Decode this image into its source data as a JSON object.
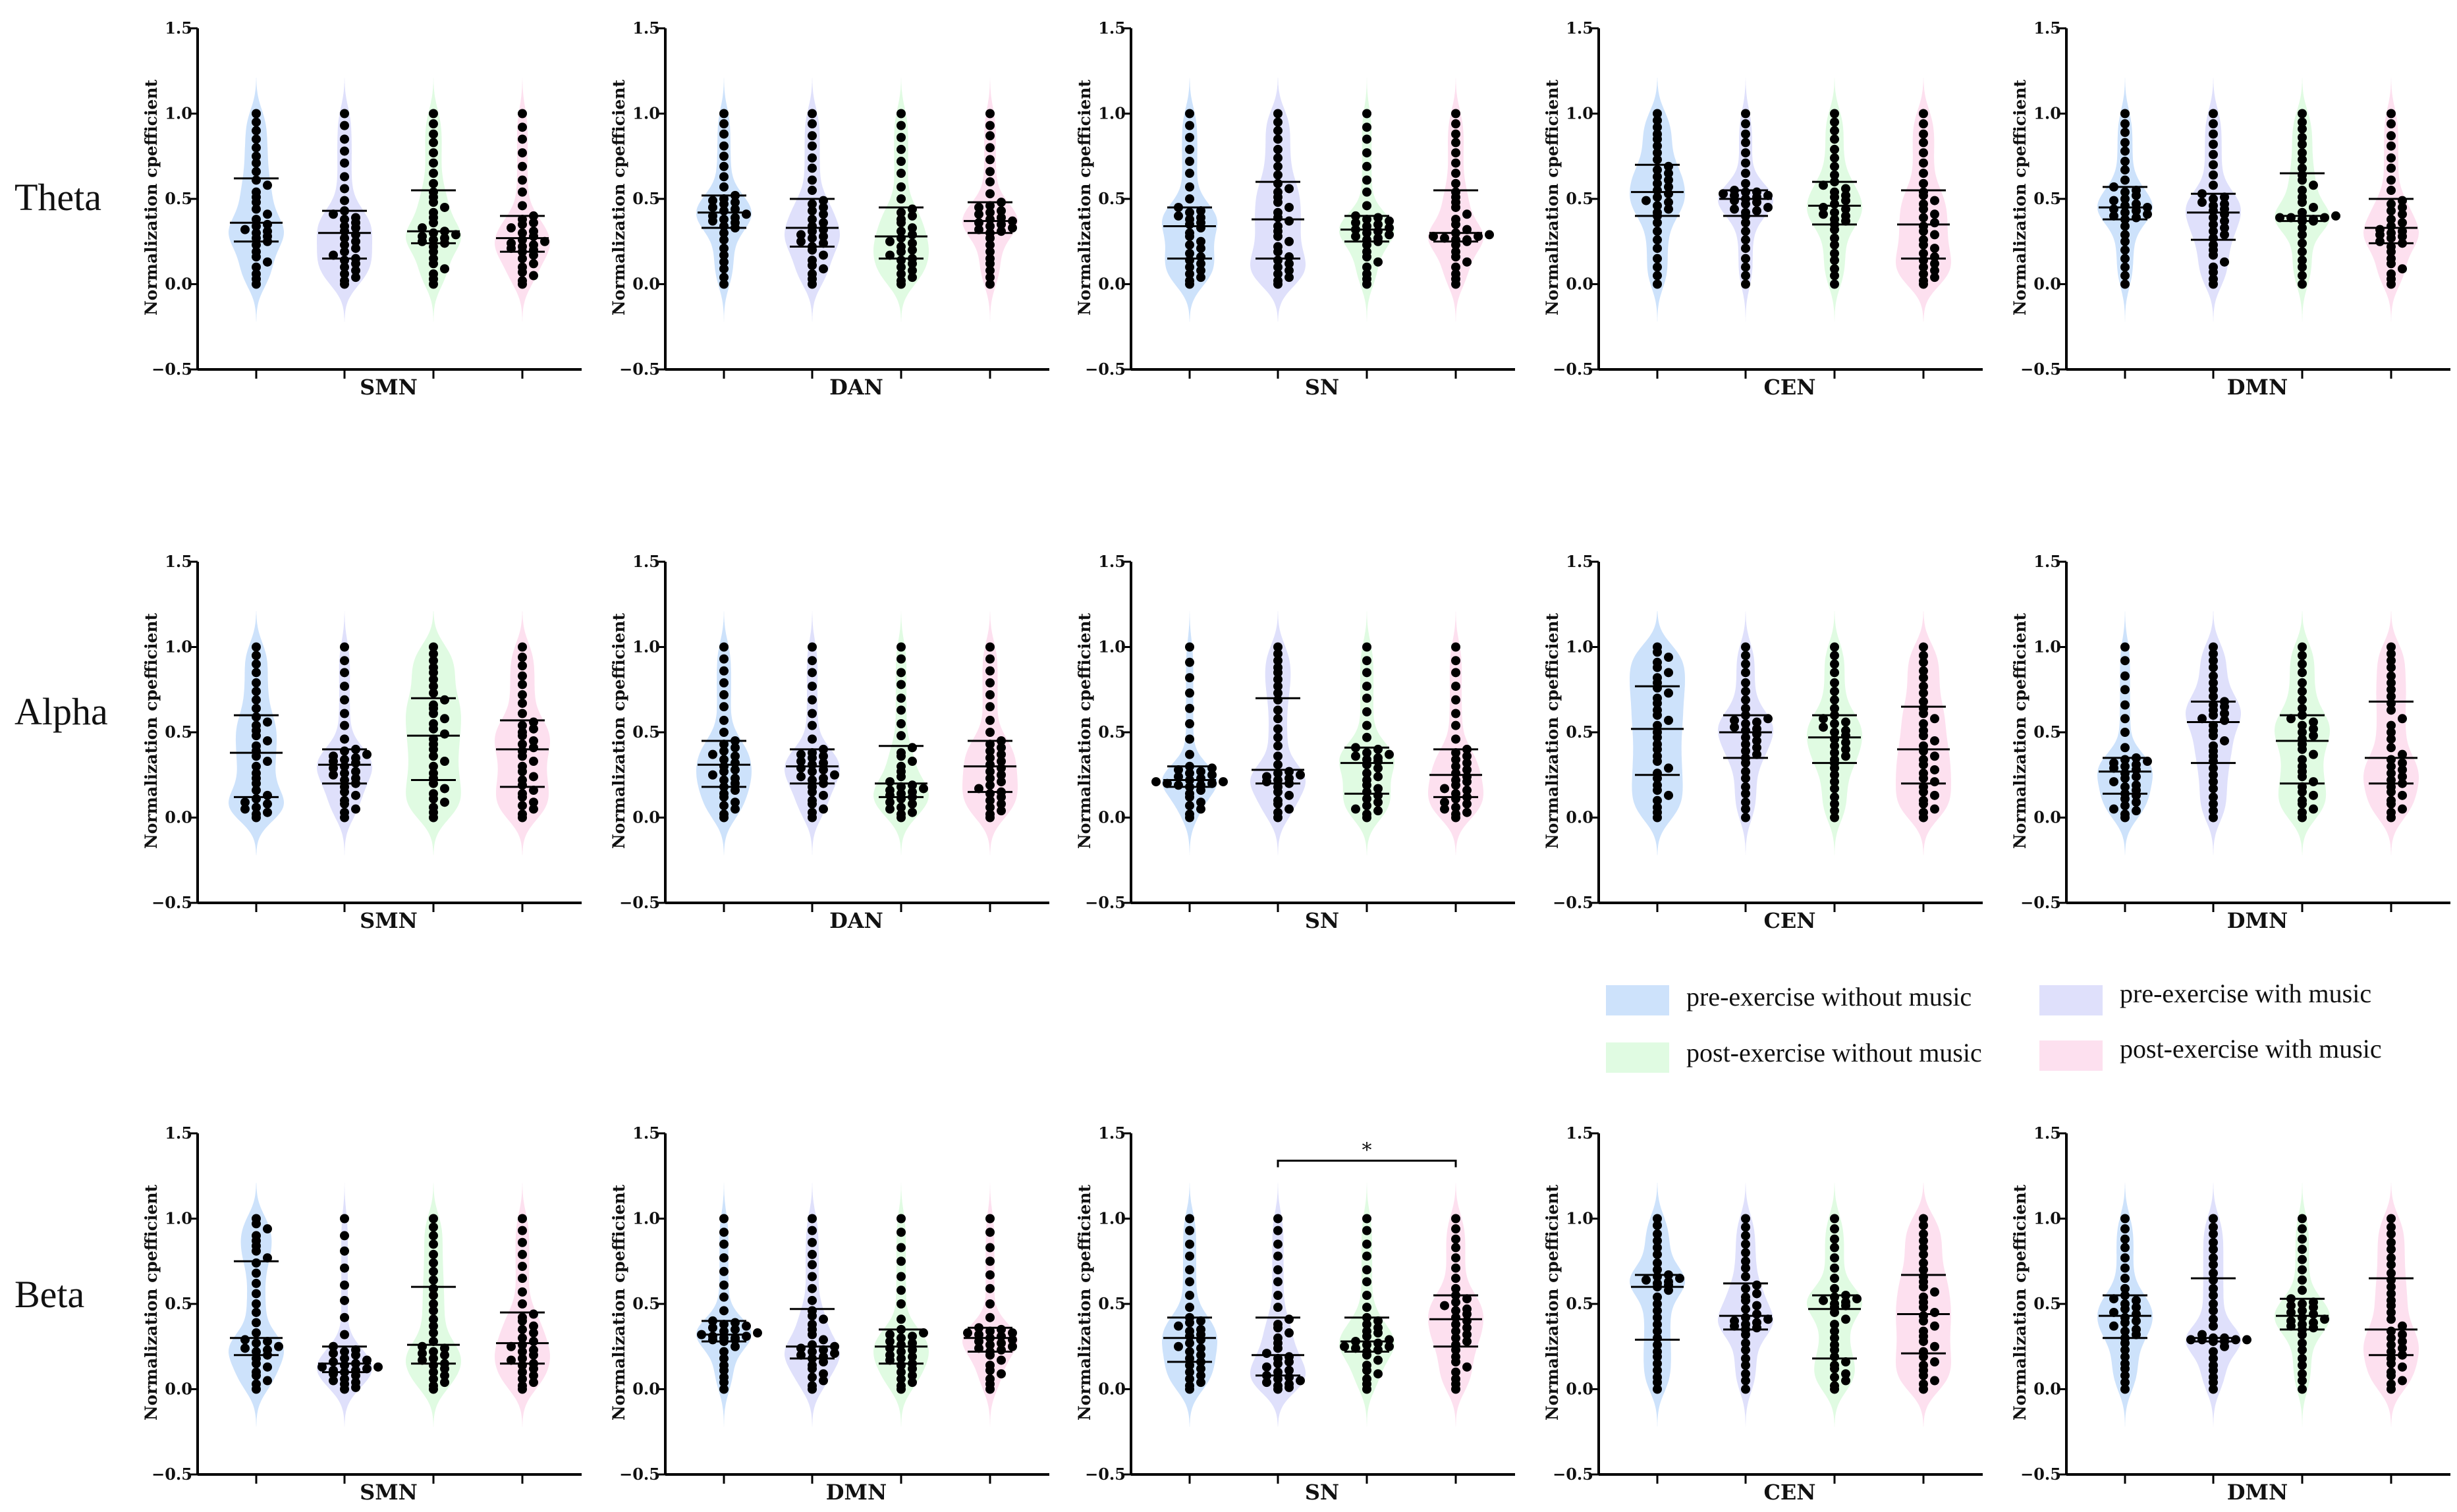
{
  "chart_data": {
    "type": "violin",
    "ylabel": "Normalization cpefficient",
    "ylim": [
      -0.5,
      1.5
    ],
    "yticks": [
      "1.5",
      "1.0",
      "0.5",
      "0.0",
      "−0.5"
    ],
    "ytick_values": [
      1.5,
      1.0,
      0.5,
      0.0,
      -0.5
    ],
    "grid": false,
    "n_per_group": 32,
    "legend": {
      "placement": "right, between Alpha and Beta rows",
      "entries": [
        {
          "label": "pre-exercise without music",
          "color": "#cde2fb"
        },
        {
          "label": "pre-exercise with music",
          "color": "#dfe0fb"
        },
        {
          "label": "post-exercise without music",
          "color": "#e0fbe2"
        },
        {
          "label": "post-exercise with music",
          "color": "#fde0ef"
        }
      ]
    },
    "rows": [
      {
        "band": "Theta",
        "panels": [
          {
            "network": "SMN",
            "groups": [
              {
                "median": 0.36,
                "q1": 0.25,
                "q3": 0.62,
                "min": 0,
                "max": 1
              },
              {
                "median": 0.3,
                "q1": 0.15,
                "q3": 0.43,
                "min": 0,
                "max": 1
              },
              {
                "median": 0.31,
                "q1": 0.24,
                "q3": 0.55,
                "min": 0,
                "max": 1
              },
              {
                "median": 0.27,
                "q1": 0.19,
                "q3": 0.4,
                "min": 0,
                "max": 1
              }
            ]
          },
          {
            "network": "DAN",
            "groups": [
              {
                "median": 0.42,
                "q1": 0.33,
                "q3": 0.52,
                "min": 0,
                "max": 1
              },
              {
                "median": 0.33,
                "q1": 0.22,
                "q3": 0.5,
                "min": 0,
                "max": 1
              },
              {
                "median": 0.28,
                "q1": 0.15,
                "q3": 0.45,
                "min": 0,
                "max": 1
              },
              {
                "median": 0.37,
                "q1": 0.3,
                "q3": 0.48,
                "min": 0,
                "max": 1
              }
            ]
          },
          {
            "network": "SN",
            "groups": [
              {
                "median": 0.34,
                "q1": 0.15,
                "q3": 0.45,
                "min": 0,
                "max": 1
              },
              {
                "median": 0.38,
                "q1": 0.15,
                "q3": 0.6,
                "min": 0,
                "max": 1
              },
              {
                "median": 0.32,
                "q1": 0.25,
                "q3": 0.4,
                "min": 0,
                "max": 1
              },
              {
                "median": 0.3,
                "q1": 0.25,
                "q3": 0.55,
                "min": 0,
                "max": 1
              }
            ]
          },
          {
            "network": "CEN",
            "groups": [
              {
                "median": 0.54,
                "q1": 0.4,
                "q3": 0.7,
                "min": 0,
                "max": 1
              },
              {
                "median": 0.5,
                "q1": 0.4,
                "q3": 0.55,
                "min": 0,
                "max": 1
              },
              {
                "median": 0.46,
                "q1": 0.35,
                "q3": 0.6,
                "min": 0,
                "max": 1
              },
              {
                "median": 0.35,
                "q1": 0.15,
                "q3": 0.55,
                "min": 0,
                "max": 1
              }
            ]
          },
          {
            "network": "DMN",
            "groups": [
              {
                "median": 0.45,
                "q1": 0.38,
                "q3": 0.57,
                "min": 0,
                "max": 1
              },
              {
                "median": 0.42,
                "q1": 0.26,
                "q3": 0.53,
                "min": 0,
                "max": 1
              },
              {
                "median": 0.4,
                "q1": 0.37,
                "q3": 0.65,
                "min": 0,
                "max": 1
              },
              {
                "median": 0.33,
                "q1": 0.24,
                "q3": 0.5,
                "min": 0,
                "max": 1
              }
            ]
          }
        ]
      },
      {
        "band": "Alpha",
        "panels": [
          {
            "network": "SMN",
            "groups": [
              {
                "median": 0.38,
                "q1": 0.12,
                "q3": 0.6,
                "min": 0,
                "max": 1
              },
              {
                "median": 0.31,
                "q1": 0.2,
                "q3": 0.4,
                "min": 0,
                "max": 1
              },
              {
                "median": 0.48,
                "q1": 0.22,
                "q3": 0.7,
                "min": 0,
                "max": 1
              },
              {
                "median": 0.4,
                "q1": 0.18,
                "q3": 0.57,
                "min": 0,
                "max": 1
              }
            ]
          },
          {
            "network": "DAN",
            "groups": [
              {
                "median": 0.31,
                "q1": 0.18,
                "q3": 0.45,
                "min": 0,
                "max": 1
              },
              {
                "median": 0.3,
                "q1": 0.2,
                "q3": 0.4,
                "min": 0,
                "max": 1
              },
              {
                "median": 0.2,
                "q1": 0.12,
                "q3": 0.42,
                "min": 0,
                "max": 1
              },
              {
                "median": 0.3,
                "q1": 0.15,
                "q3": 0.45,
                "min": 0,
                "max": 1
              }
            ]
          },
          {
            "network": "SN",
            "groups": [
              {
                "median": 0.22,
                "q1": 0.18,
                "q3": 0.3,
                "min": 0,
                "max": 1
              },
              {
                "median": 0.28,
                "q1": 0.2,
                "q3": 0.7,
                "min": 0,
                "max": 1
              },
              {
                "median": 0.32,
                "q1": 0.14,
                "q3": 0.41,
                "min": 0,
                "max": 1
              },
              {
                "median": 0.25,
                "q1": 0.12,
                "q3": 0.4,
                "min": 0,
                "max": 1
              }
            ]
          },
          {
            "network": "CEN",
            "groups": [
              {
                "median": 0.52,
                "q1": 0.25,
                "q3": 0.77,
                "min": 0,
                "max": 1
              },
              {
                "median": 0.5,
                "q1": 0.35,
                "q3": 0.6,
                "min": 0,
                "max": 1
              },
              {
                "median": 0.47,
                "q1": 0.32,
                "q3": 0.6,
                "min": 0,
                "max": 1
              },
              {
                "median": 0.4,
                "q1": 0.2,
                "q3": 0.65,
                "min": 0,
                "max": 1
              }
            ]
          },
          {
            "network": "DMN",
            "groups": [
              {
                "median": 0.27,
                "q1": 0.14,
                "q3": 0.35,
                "min": 0,
                "max": 1
              },
              {
                "median": 0.56,
                "q1": 0.32,
                "q3": 0.68,
                "min": 0,
                "max": 1
              },
              {
                "median": 0.45,
                "q1": 0.2,
                "q3": 0.6,
                "min": 0,
                "max": 1
              },
              {
                "median": 0.35,
                "q1": 0.2,
                "q3": 0.68,
                "min": 0,
                "max": 1
              }
            ]
          }
        ]
      },
      {
        "band": "Beta",
        "panels": [
          {
            "network": "SMN",
            "groups": [
              {
                "median": 0.3,
                "q1": 0.2,
                "q3": 0.75,
                "min": 0,
                "max": 1
              },
              {
                "median": 0.15,
                "q1": 0.1,
                "q3": 0.25,
                "min": 0,
                "max": 1
              },
              {
                "median": 0.26,
                "q1": 0.15,
                "q3": 0.6,
                "min": 0,
                "max": 1
              },
              {
                "median": 0.27,
                "q1": 0.15,
                "q3": 0.45,
                "min": 0,
                "max": 1
              }
            ]
          },
          {
            "network": "DMN",
            "groups": [
              {
                "median": 0.32,
                "q1": 0.28,
                "q3": 0.4,
                "min": 0,
                "max": 1
              },
              {
                "median": 0.25,
                "q1": 0.18,
                "q3": 0.47,
                "min": 0,
                "max": 1
              },
              {
                "median": 0.25,
                "q1": 0.15,
                "q3": 0.35,
                "min": 0,
                "max": 1
              },
              {
                "median": 0.3,
                "q1": 0.22,
                "q3": 0.36,
                "min": 0,
                "max": 1
              }
            ]
          },
          {
            "network": "SN",
            "groups": [
              {
                "median": 0.3,
                "q1": 0.16,
                "q3": 0.42,
                "min": 0,
                "max": 1
              },
              {
                "median": 0.2,
                "q1": 0.08,
                "q3": 0.42,
                "min": 0,
                "max": 1
              },
              {
                "median": 0.28,
                "q1": 0.22,
                "q3": 0.42,
                "min": 0,
                "max": 1
              },
              {
                "median": 0.41,
                "q1": 0.25,
                "q3": 0.55,
                "min": 0,
                "max": 1
              }
            ],
            "significance": {
              "from_group": 2,
              "to_group": 4,
              "label": "*",
              "y": 1.34
            }
          },
          {
            "network": "CEN",
            "groups": [
              {
                "median": 0.6,
                "q1": 0.29,
                "q3": 0.67,
                "min": 0,
                "max": 1
              },
              {
                "median": 0.43,
                "q1": 0.35,
                "q3": 0.62,
                "min": 0,
                "max": 1
              },
              {
                "median": 0.47,
                "q1": 0.18,
                "q3": 0.55,
                "min": 0,
                "max": 1
              },
              {
                "median": 0.44,
                "q1": 0.21,
                "q3": 0.67,
                "min": 0,
                "max": 1
              }
            ]
          },
          {
            "network": "DMN",
            "groups": [
              {
                "median": 0.43,
                "q1": 0.3,
                "q3": 0.55,
                "min": 0,
                "max": 1
              },
              {
                "median": 0.3,
                "q1": 0.28,
                "q3": 0.65,
                "min": 0,
                "max": 1
              },
              {
                "median": 0.43,
                "q1": 0.35,
                "q3": 0.53,
                "min": 0,
                "max": 1
              },
              {
                "median": 0.35,
                "q1": 0.2,
                "q3": 0.65,
                "min": 0,
                "max": 1
              }
            ]
          }
        ]
      }
    ]
  }
}
